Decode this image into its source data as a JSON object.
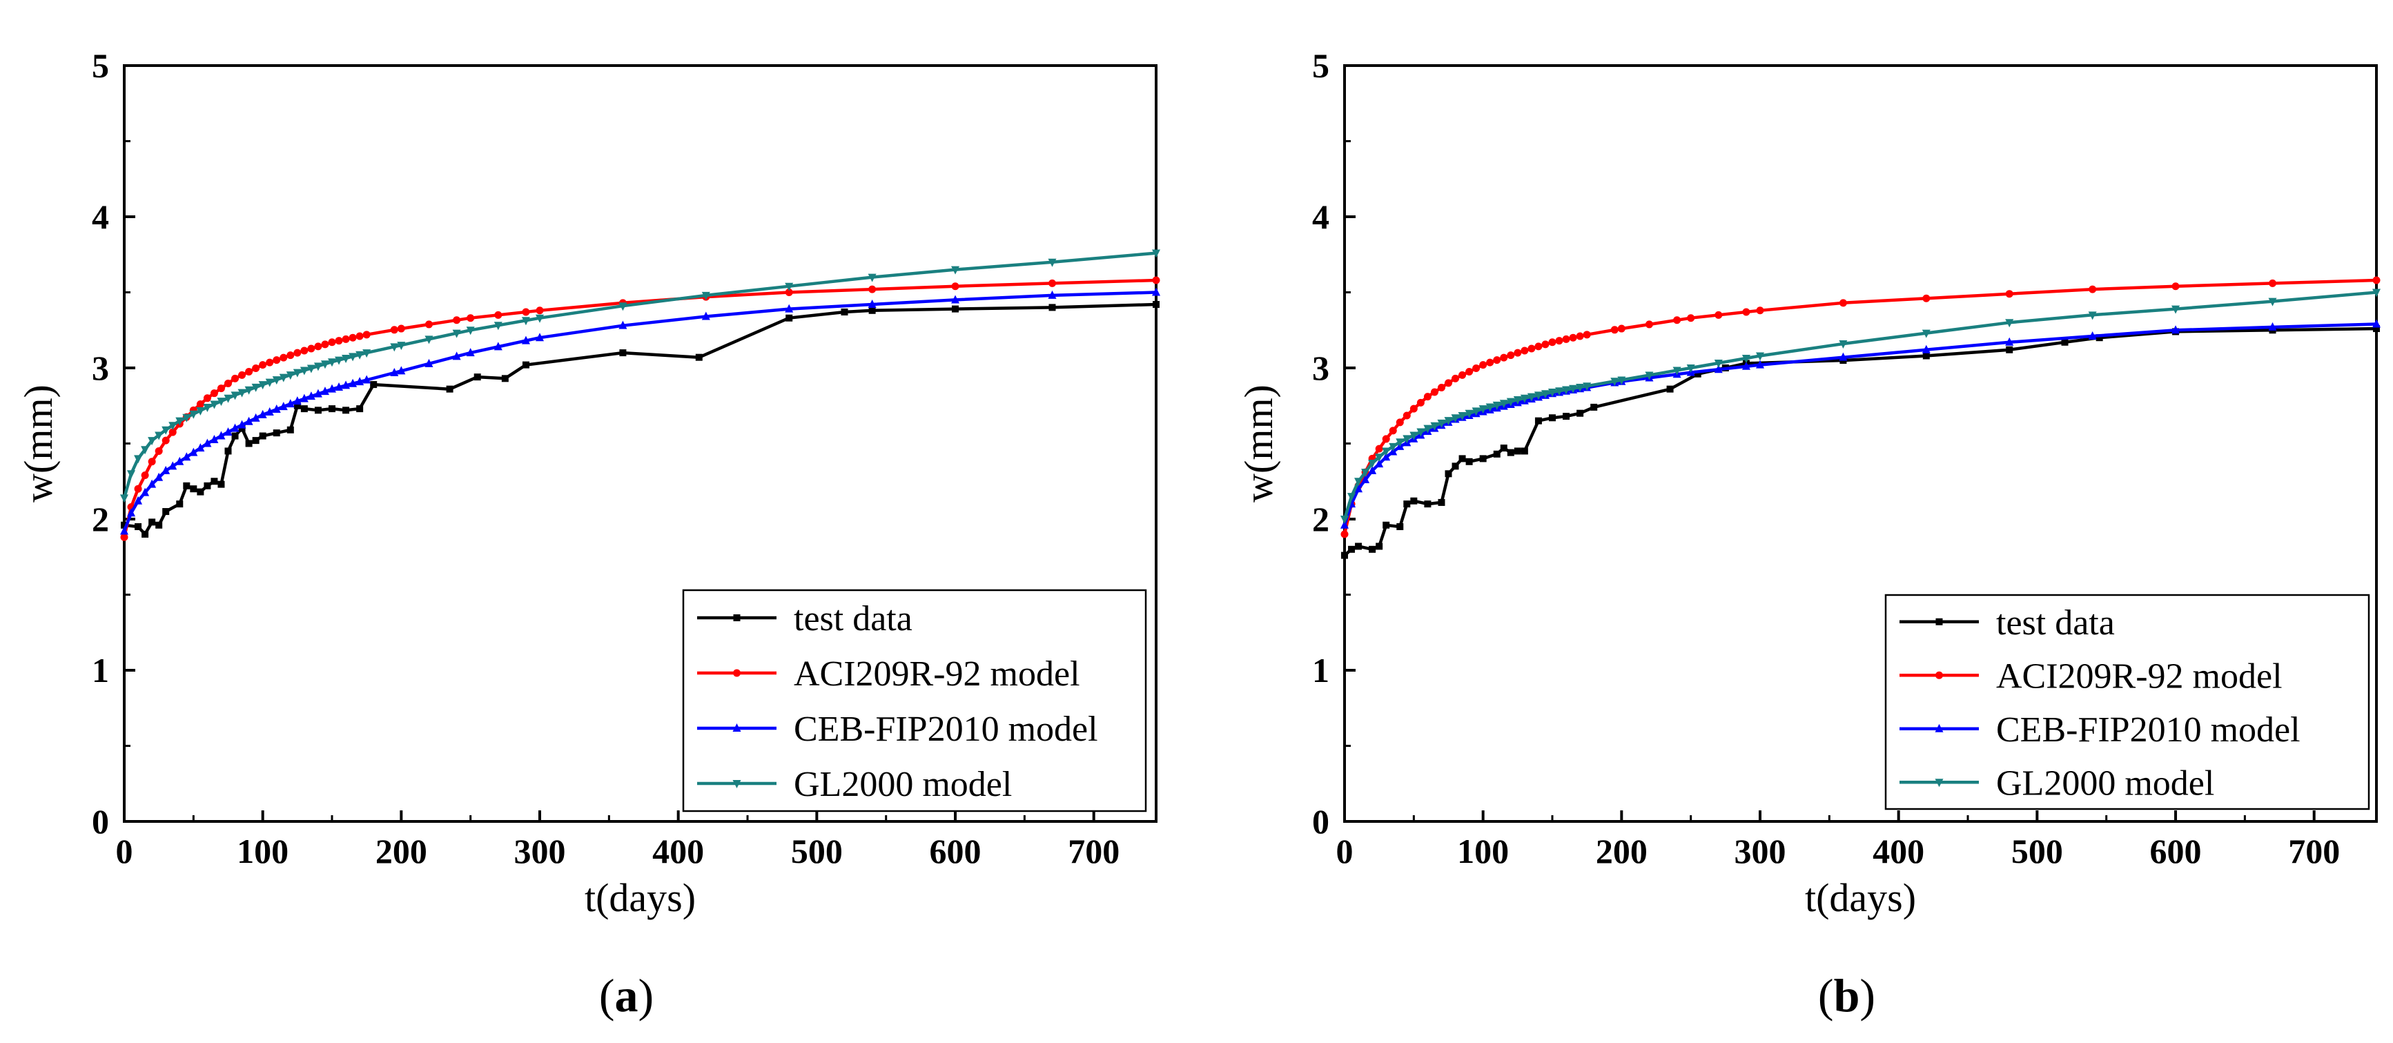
{
  "chart_data": [
    {
      "type": "line",
      "xlabel": "t(days)",
      "ylabel": "w(mm)",
      "panel_label": "(a)",
      "panel_letter": "a",
      "xlim": [
        0,
        745
      ],
      "ylim": [
        0,
        5
      ],
      "xticks": [
        0,
        100,
        200,
        300,
        400,
        500,
        600,
        700
      ],
      "yticks": [
        0,
        1,
        2,
        3,
        4,
        5
      ],
      "legend_position": "bottom-right",
      "series": [
        {
          "name": "test data",
          "color": "#000000",
          "marker": "square",
          "x": [
            0,
            10,
            15,
            20,
            25,
            30,
            40,
            45,
            50,
            55,
            60,
            65,
            70,
            75,
            80,
            85,
            90,
            95,
            100,
            110,
            120,
            125,
            130,
            140,
            150,
            160,
            170,
            180,
            235,
            255,
            275,
            290,
            360,
            415,
            480,
            520,
            540,
            600,
            670,
            745
          ],
          "y": [
            1.96,
            1.95,
            1.9,
            1.98,
            1.96,
            2.05,
            2.1,
            2.22,
            2.2,
            2.18,
            2.22,
            2.25,
            2.23,
            2.45,
            2.55,
            2.6,
            2.5,
            2.52,
            2.55,
            2.57,
            2.59,
            2.75,
            2.73,
            2.72,
            2.73,
            2.72,
            2.73,
            2.89,
            2.86,
            2.94,
            2.93,
            3.02,
            3.1,
            3.07,
            3.33,
            3.37,
            3.38,
            3.39,
            3.4,
            3.42
          ]
        },
        {
          "name": "ACI209R-92 model",
          "color": "#ff0000",
          "marker": "circle",
          "x": [
            0,
            5,
            10,
            20,
            30,
            40,
            50,
            60,
            80,
            100,
            125,
            150,
            175,
            200,
            250,
            300,
            360,
            420,
            480,
            540,
            600,
            670,
            745
          ],
          "y": [
            1.88,
            2.08,
            2.2,
            2.38,
            2.52,
            2.63,
            2.72,
            2.8,
            2.93,
            3.02,
            3.1,
            3.17,
            3.22,
            3.26,
            3.33,
            3.38,
            3.43,
            3.47,
            3.5,
            3.52,
            3.54,
            3.56,
            3.58
          ]
        },
        {
          "name": "CEB-FIP2010 model",
          "color": "#0000ff",
          "marker": "triangle-up",
          "x": [
            0,
            5,
            10,
            20,
            30,
            40,
            60,
            80,
            100,
            125,
            150,
            175,
            200,
            250,
            300,
            360,
            420,
            480,
            540,
            600,
            670,
            745
          ],
          "y": [
            1.92,
            2.04,
            2.12,
            2.23,
            2.32,
            2.38,
            2.5,
            2.6,
            2.69,
            2.78,
            2.86,
            2.92,
            2.98,
            3.1,
            3.2,
            3.28,
            3.34,
            3.39,
            3.42,
            3.45,
            3.48,
            3.5
          ]
        },
        {
          "name": "GL2000 model",
          "color": "#1a8080",
          "marker": "triangle-down",
          "x": [
            0,
            5,
            10,
            20,
            30,
            40,
            60,
            80,
            100,
            125,
            150,
            175,
            200,
            250,
            300,
            360,
            420,
            480,
            540,
            600,
            670,
            745
          ],
          "y": [
            2.14,
            2.3,
            2.4,
            2.52,
            2.59,
            2.65,
            2.74,
            2.82,
            2.89,
            2.97,
            3.04,
            3.1,
            3.15,
            3.25,
            3.33,
            3.41,
            3.48,
            3.54,
            3.6,
            3.65,
            3.7,
            3.76
          ]
        }
      ]
    },
    {
      "type": "line",
      "xlabel": "t(days)",
      "ylabel": "w(mm)",
      "panel_label": "(b)",
      "panel_letter": "b",
      "xlim": [
        0,
        745
      ],
      "ylim": [
        0,
        5
      ],
      "xticks": [
        0,
        100,
        200,
        300,
        400,
        500,
        600,
        700
      ],
      "yticks": [
        0,
        1,
        2,
        3,
        4,
        5
      ],
      "legend_position": "bottom-right",
      "series": [
        {
          "name": "test data",
          "color": "#000000",
          "marker": "square",
          "x": [
            0,
            5,
            10,
            20,
            25,
            30,
            40,
            45,
            50,
            60,
            70,
            75,
            80,
            85,
            90,
            100,
            110,
            115,
            120,
            125,
            130,
            140,
            150,
            160,
            170,
            180,
            235,
            255,
            275,
            290,
            360,
            420,
            480,
            520,
            545,
            600,
            670,
            745
          ],
          "y": [
            1.76,
            1.8,
            1.82,
            1.8,
            1.82,
            1.96,
            1.95,
            2.1,
            2.12,
            2.1,
            2.11,
            2.3,
            2.35,
            2.4,
            2.38,
            2.4,
            2.43,
            2.47,
            2.44,
            2.45,
            2.45,
            2.65,
            2.67,
            2.68,
            2.7,
            2.74,
            2.86,
            2.96,
            3.0,
            3.03,
            3.05,
            3.08,
            3.12,
            3.17,
            3.2,
            3.24,
            3.25,
            3.26
          ]
        },
        {
          "name": "ACI209R-92 model",
          "color": "#ff0000",
          "marker": "circle",
          "x": [
            0,
            5,
            10,
            20,
            30,
            40,
            50,
            60,
            80,
            100,
            125,
            150,
            175,
            200,
            250,
            300,
            360,
            420,
            480,
            540,
            600,
            670,
            745
          ],
          "y": [
            1.9,
            2.1,
            2.22,
            2.4,
            2.53,
            2.64,
            2.73,
            2.81,
            2.93,
            3.02,
            3.1,
            3.17,
            3.22,
            3.26,
            3.33,
            3.38,
            3.43,
            3.46,
            3.49,
            3.52,
            3.54,
            3.56,
            3.58
          ]
        },
        {
          "name": "CEB-FIP2010 model",
          "color": "#0000ff",
          "marker": "triangle-up",
          "x": [
            0,
            5,
            10,
            20,
            30,
            40,
            60,
            80,
            100,
            125,
            150,
            175,
            200,
            250,
            300,
            360,
            420,
            480,
            540,
            600,
            670,
            745
          ],
          "y": [
            1.96,
            2.1,
            2.2,
            2.32,
            2.41,
            2.48,
            2.58,
            2.66,
            2.71,
            2.77,
            2.83,
            2.87,
            2.91,
            2.97,
            3.02,
            3.07,
            3.12,
            3.17,
            3.21,
            3.25,
            3.27,
            3.29
          ]
        },
        {
          "name": "GL2000 model",
          "color": "#1a8080",
          "marker": "triangle-down",
          "x": [
            0,
            5,
            10,
            20,
            30,
            40,
            60,
            80,
            100,
            125,
            150,
            175,
            200,
            250,
            300,
            360,
            420,
            480,
            540,
            600,
            670,
            745
          ],
          "y": [
            2.0,
            2.15,
            2.25,
            2.37,
            2.45,
            2.51,
            2.6,
            2.67,
            2.73,
            2.79,
            2.84,
            2.88,
            2.92,
            3.0,
            3.08,
            3.16,
            3.23,
            3.3,
            3.35,
            3.39,
            3.44,
            3.5
          ]
        }
      ]
    }
  ]
}
